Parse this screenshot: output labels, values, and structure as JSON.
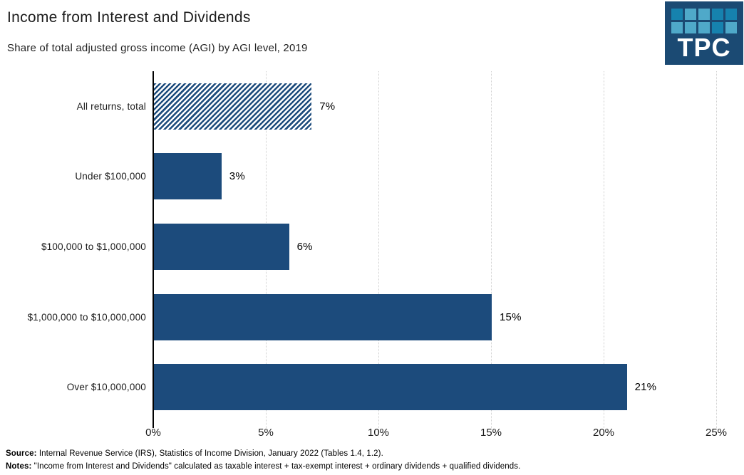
{
  "header": {
    "title": "Income from Interest and Dividends",
    "subtitle": "Share of total adjusted gross income (AGI) by AGI level, 2019"
  },
  "logo": {
    "text": "TPC",
    "bg_color": "#1b4a73",
    "tile_colors": [
      [
        "#1682ae",
        "#4fa9c9",
        "#4fa9c9",
        "#1682ae",
        "#1682ae"
      ],
      [
        "#4fa9c9",
        "#4fa9c9",
        "#4fa9c9",
        "#1682ae",
        "#4fa9c9"
      ]
    ]
  },
  "chart_data": {
    "type": "bar",
    "orientation": "horizontal",
    "title": "Income from Interest and Dividends",
    "subtitle": "Share of total adjusted gross income (AGI) by AGI level, 2019",
    "categories": [
      "All returns, total",
      "Under $100,000",
      "$100,000 to $1,000,000",
      "$1,000,000 to $10,000,000",
      "Over $10,000,000"
    ],
    "values": [
      7,
      3,
      6,
      15,
      21
    ],
    "value_labels": [
      "7%",
      "3%",
      "6%",
      "15%",
      "21%"
    ],
    "bar_styles": [
      "hatched",
      "solid",
      "solid",
      "solid",
      "solid"
    ],
    "bar_color": "#1c4b7c",
    "xlim": [
      0,
      25
    ],
    "x_ticks": [
      "0%",
      "5%",
      "10%",
      "15%",
      "20%",
      "25%"
    ],
    "grid": "vertical-dotted",
    "legend": "none"
  },
  "footer": {
    "source_label": "Source:",
    "source_text": " Internal Revenue Service (IRS), Statistics of Income Division, January 2022 (Tables 1.4, 1.2).",
    "notes_label": "Notes:",
    "notes_text": " \"Income from Interest and Dividends\" calculated as taxable interest + tax-exempt interest + ordinary dividends + qualified dividends."
  }
}
